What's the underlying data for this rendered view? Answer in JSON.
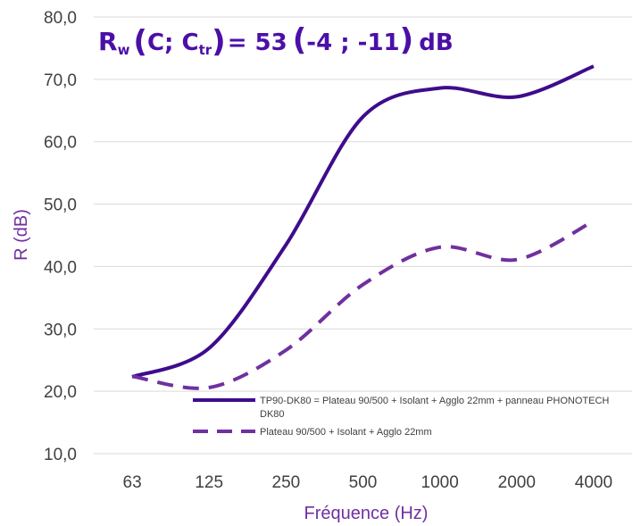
{
  "chart_data": {
    "type": "line",
    "title": {
      "r": "R",
      "w_sub": "w",
      "open": "(",
      "c": "C; C",
      "tr_sub": "tr",
      "close": ")",
      "eq": "= 53",
      "paren_open": "(",
      "values_text": "-4 ; -11",
      "paren_close": ")",
      "unit": "dB"
    },
    "xlabel": "Fréquence (Hz)",
    "ylabel": "R (dB)",
    "categories": [
      "63",
      "125",
      "250",
      "500",
      "1000",
      "2000",
      "4000"
    ],
    "yticks": [
      "10,0",
      "20,0",
      "30,0",
      "40,0",
      "50,0",
      "60,0",
      "70,0",
      "80,0"
    ],
    "ylim": [
      10,
      80
    ],
    "grid": true,
    "legend_position": "bottom-right, inside plot",
    "series": [
      {
        "name": "TP90-DK80 = Plateau 90/500 + Isolant + Agglo 22mm + panneau PHONOTECH DK80",
        "name_lines": [
          "TP90-DK80 = Plateau 90/500 + Isolant + Agglo 22mm + panneau PHONOTECH",
          "DK80"
        ],
        "values": [
          22.3,
          26.9,
          43.5,
          64.0,
          68.6,
          67.2,
          72.1
        ],
        "color": "#3f0c8c",
        "style": "solid"
      },
      {
        "name": "Plateau 90/500 + Isolant + Agglo 22mm",
        "name_lines": [
          "Plateau 90/500 + Isolant + Agglo 22mm"
        ],
        "values": [
          22.4,
          20.6,
          26.6,
          37.1,
          43.1,
          41.1,
          47.3
        ],
        "color": "#7030a0",
        "style": "dashed"
      }
    ]
  }
}
